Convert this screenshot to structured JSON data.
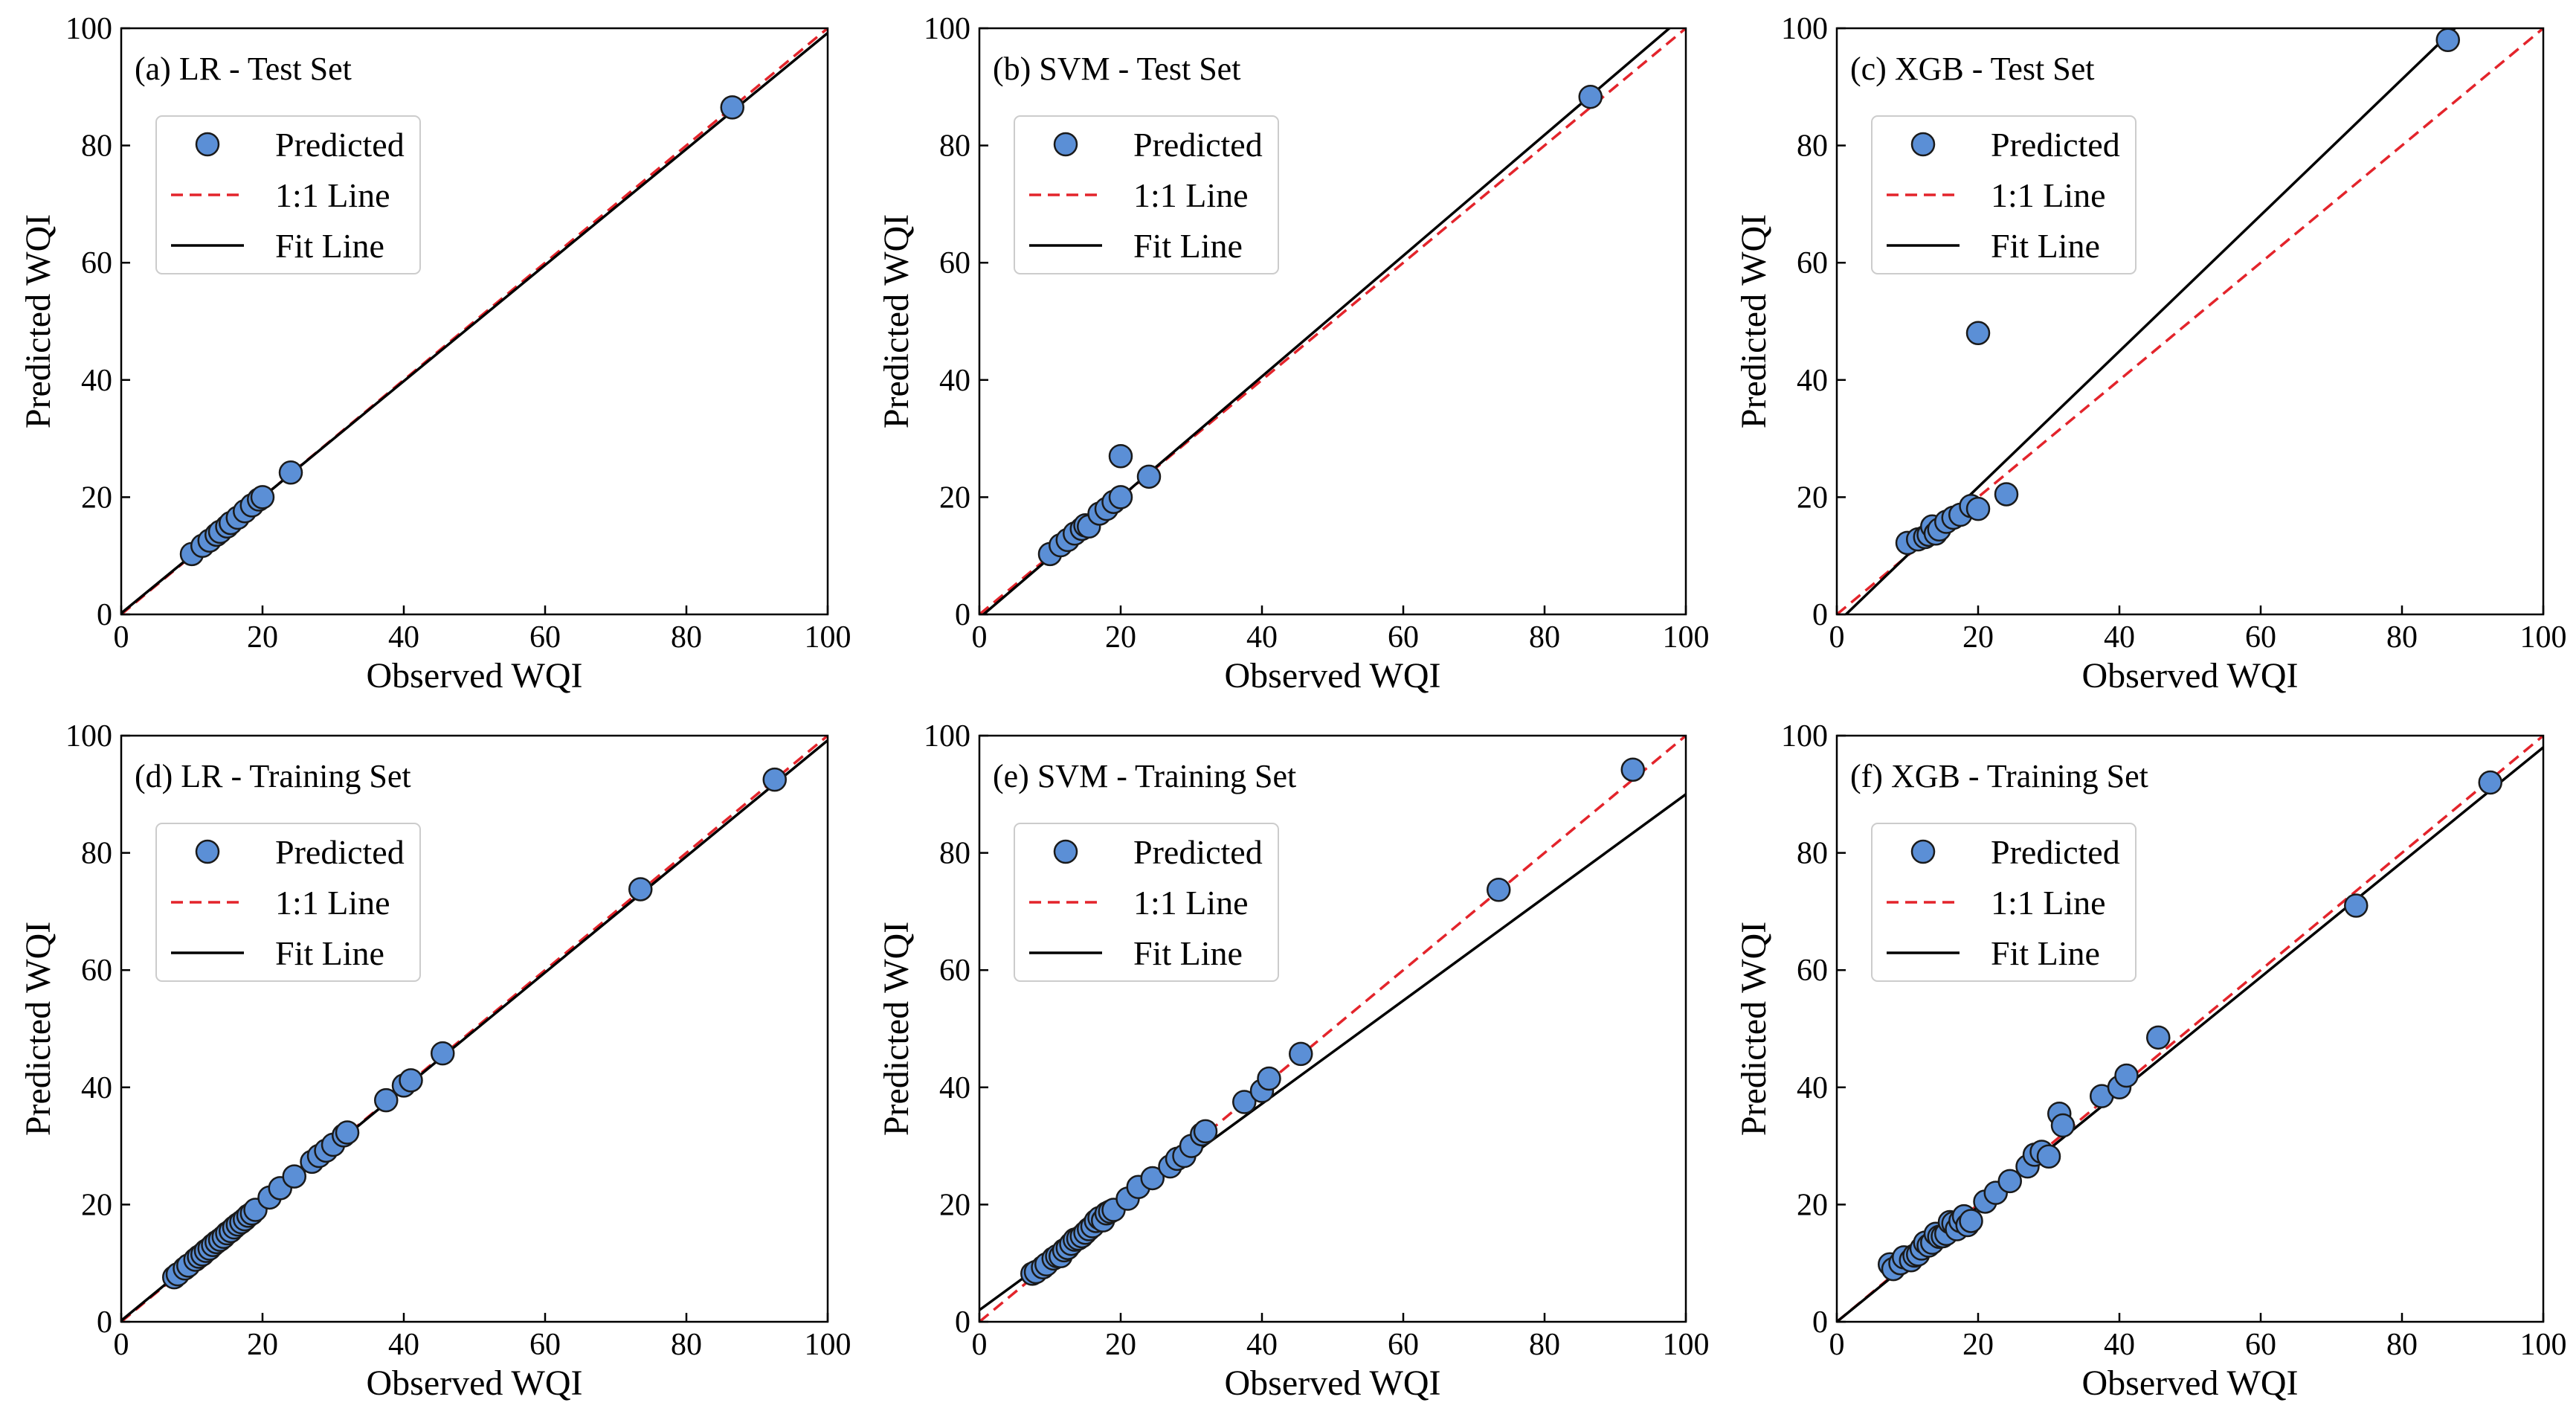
{
  "colors": {
    "marker_fill": "#5b8fd6",
    "marker_edge": "#1a1a1a",
    "one_to_one_line": "#e3242b",
    "fit_line": "#000000"
  },
  "chart_data": [
    {
      "type": "scatter",
      "title": "(a) LR - Test Set",
      "xlabel": "Observed WQI",
      "ylabel": "Predicted WQI",
      "xlim": [
        0,
        100
      ],
      "ylim": [
        0,
        100
      ],
      "xticks": [
        0,
        20,
        40,
        60,
        80,
        100
      ],
      "yticks": [
        0,
        20,
        40,
        60,
        80,
        100
      ],
      "legend": [
        "Predicted",
        "1:1 Line",
        "Fit Line"
      ],
      "fit_line": {
        "slope": 0.99,
        "intercept": 0.2
      },
      "series": [
        {
          "name": "Predicted",
          "x": [
            10,
            11.5,
            12.5,
            13.5,
            14,
            15,
            15.5,
            16.5,
            17.5,
            18.5,
            19.5,
            20,
            24,
            86.5
          ],
          "y": [
            10.3,
            11.7,
            12.6,
            13.6,
            14.1,
            15,
            15.6,
            16.5,
            17.6,
            18.6,
            19.6,
            20,
            24.2,
            86.5
          ]
        }
      ]
    },
    {
      "type": "scatter",
      "title": "(b) SVM - Test Set",
      "xlabel": "Observed WQI",
      "ylabel": "Predicted WQI",
      "xlim": [
        0,
        100
      ],
      "ylim": [
        0,
        100
      ],
      "xticks": [
        0,
        20,
        40,
        60,
        80,
        100
      ],
      "yticks": [
        0,
        20,
        40,
        60,
        80,
        100
      ],
      "legend": [
        "Predicted",
        "1:1 Line",
        "Fit Line"
      ],
      "fit_line": {
        "slope": 1.03,
        "intercept": -0.6
      },
      "series": [
        {
          "name": "Predicted",
          "x": [
            10,
            11.5,
            12.5,
            13.5,
            14.5,
            15,
            15.5,
            17,
            18,
            19,
            20,
            20,
            24,
            86.5
          ],
          "y": [
            10.3,
            11.8,
            12.7,
            13.8,
            14.6,
            15.2,
            15,
            17.2,
            18,
            19.2,
            20,
            27,
            23.5,
            88.3
          ]
        }
      ]
    },
    {
      "type": "scatter",
      "title": "(c) XGB - Test Set",
      "xlabel": "Observed WQI",
      "ylabel": "Predicted WQI",
      "xlim": [
        0,
        100
      ],
      "ylim": [
        0,
        100
      ],
      "xticks": [
        0,
        20,
        40,
        60,
        80,
        100
      ],
      "yticks": [
        0,
        20,
        40,
        60,
        80,
        100
      ],
      "legend": [
        "Predicted",
        "1:1 Line",
        "Fit Line"
      ],
      "fit_line": {
        "slope": 1.16,
        "intercept": -1.5
      },
      "series": [
        {
          "name": "Predicted",
          "x": [
            10,
            11.5,
            12.5,
            13,
            13.5,
            14,
            14.5,
            15.5,
            16.5,
            17.5,
            19,
            20,
            20,
            24,
            86.5
          ],
          "y": [
            12.2,
            12.8,
            13.2,
            13.6,
            15,
            13.8,
            14.5,
            15.8,
            16.5,
            17,
            18.5,
            18,
            48,
            20.5,
            98
          ]
        }
      ]
    },
    {
      "type": "scatter",
      "title": "(d) LR - Training Set",
      "xlabel": "Observed WQI",
      "ylabel": "Predicted WQI",
      "xlim": [
        0,
        100
      ],
      "ylim": [
        0,
        100
      ],
      "xticks": [
        0,
        20,
        40,
        60,
        80,
        100
      ],
      "yticks": [
        0,
        20,
        40,
        60,
        80,
        100
      ],
      "legend": [
        "Predicted",
        "1:1 Line",
        "Fit Line"
      ],
      "fit_line": {
        "slope": 0.99,
        "intercept": 0.2
      },
      "series": [
        {
          "name": "Predicted",
          "x": [
            7.5,
            8,
            9,
            9.5,
            10.5,
            11,
            11.5,
            12,
            12.5,
            13,
            13.5,
            14,
            14.5,
            15,
            15.5,
            16,
            16.5,
            17,
            17.5,
            18,
            18.5,
            19,
            21,
            22.5,
            24.5,
            27,
            28,
            29,
            30,
            31.5,
            32,
            37.5,
            40,
            41,
            45.5,
            73.5,
            92.5
          ],
          "y": [
            7.6,
            8.1,
            9.1,
            9.6,
            10.6,
            11.1,
            11.5,
            12.1,
            12.5,
            13.1,
            13.6,
            14,
            14.5,
            15.1,
            15.5,
            16.1,
            16.6,
            17,
            17.5,
            18.1,
            18.5,
            19.1,
            21.2,
            22.8,
            24.8,
            27.3,
            28.3,
            29.2,
            30.2,
            31.8,
            32.3,
            37.8,
            40.3,
            41.2,
            45.8,
            73.8,
            92.5
          ]
        }
      ]
    },
    {
      "type": "scatter",
      "title": "(e) SVM - Training Set",
      "xlabel": "Observed WQI",
      "ylabel": "Predicted WQI",
      "xlim": [
        0,
        100
      ],
      "ylim": [
        0,
        100
      ],
      "xticks": [
        0,
        20,
        40,
        60,
        80,
        100
      ],
      "yticks": [
        0,
        20,
        40,
        60,
        80,
        100
      ],
      "legend": [
        "Predicted",
        "1:1 Line",
        "Fit Line"
      ],
      "fit_line": {
        "slope": 0.88,
        "intercept": 2
      },
      "series": [
        {
          "name": "Predicted",
          "x": [
            7.5,
            8,
            9,
            9.5,
            10.5,
            11,
            11.5,
            12,
            12.5,
            13,
            13.5,
            14,
            14.5,
            15,
            15.5,
            16,
            16.5,
            17,
            17.5,
            18,
            18.5,
            19,
            21,
            22.5,
            24.5,
            27,
            28,
            29,
            30,
            31.5,
            32,
            37.5,
            40,
            41,
            45.5,
            73.5,
            92.5
          ],
          "y": [
            8.2,
            8.5,
            9.3,
            9.8,
            10.8,
            11.2,
            11.2,
            12.2,
            12.6,
            13.3,
            14,
            14.2,
            14.6,
            15.2,
            15.8,
            16.3,
            17.2,
            17.7,
            17.3,
            18.5,
            18.8,
            19.1,
            21,
            23,
            24.5,
            26.5,
            27.8,
            28.3,
            30,
            32,
            32.5,
            37.5,
            39.4,
            41.5,
            45.7,
            73.7,
            94.2
          ]
        }
      ]
    },
    {
      "type": "scatter",
      "title": "(f) XGB - Training Set",
      "xlabel": "Observed WQI",
      "ylabel": "Predicted WQI",
      "xlim": [
        0,
        100
      ],
      "ylim": [
        0,
        100
      ],
      "xticks": [
        0,
        20,
        40,
        60,
        80,
        100
      ],
      "yticks": [
        0,
        20,
        40,
        60,
        80,
        100
      ],
      "legend": [
        "Predicted",
        "1:1 Line",
        "Fit Line"
      ],
      "fit_line": {
        "slope": 0.98,
        "intercept": 0
      },
      "series": [
        {
          "name": "Predicted",
          "x": [
            7.5,
            8,
            9,
            9.5,
            10.5,
            11,
            11.5,
            12,
            12.5,
            13,
            13.5,
            14,
            14.5,
            15,
            15.5,
            16,
            16.5,
            17,
            17.5,
            18,
            18.5,
            19,
            21,
            22.5,
            24.5,
            27,
            28,
            29,
            30,
            31.5,
            32,
            37.5,
            40,
            41,
            45.5,
            73.5,
            92.5
          ],
          "y": [
            9.8,
            9,
            10,
            11,
            10.5,
            11.3,
            11.5,
            12.5,
            13.5,
            13,
            13.5,
            15,
            14.5,
            14.6,
            15,
            17,
            16.8,
            15.8,
            17.2,
            18,
            16.5,
            17.2,
            20.5,
            22,
            24,
            26.5,
            28.5,
            29,
            28.2,
            35.5,
            33.5,
            38.5,
            40,
            42,
            48.5,
            71,
            92
          ]
        }
      ]
    }
  ]
}
